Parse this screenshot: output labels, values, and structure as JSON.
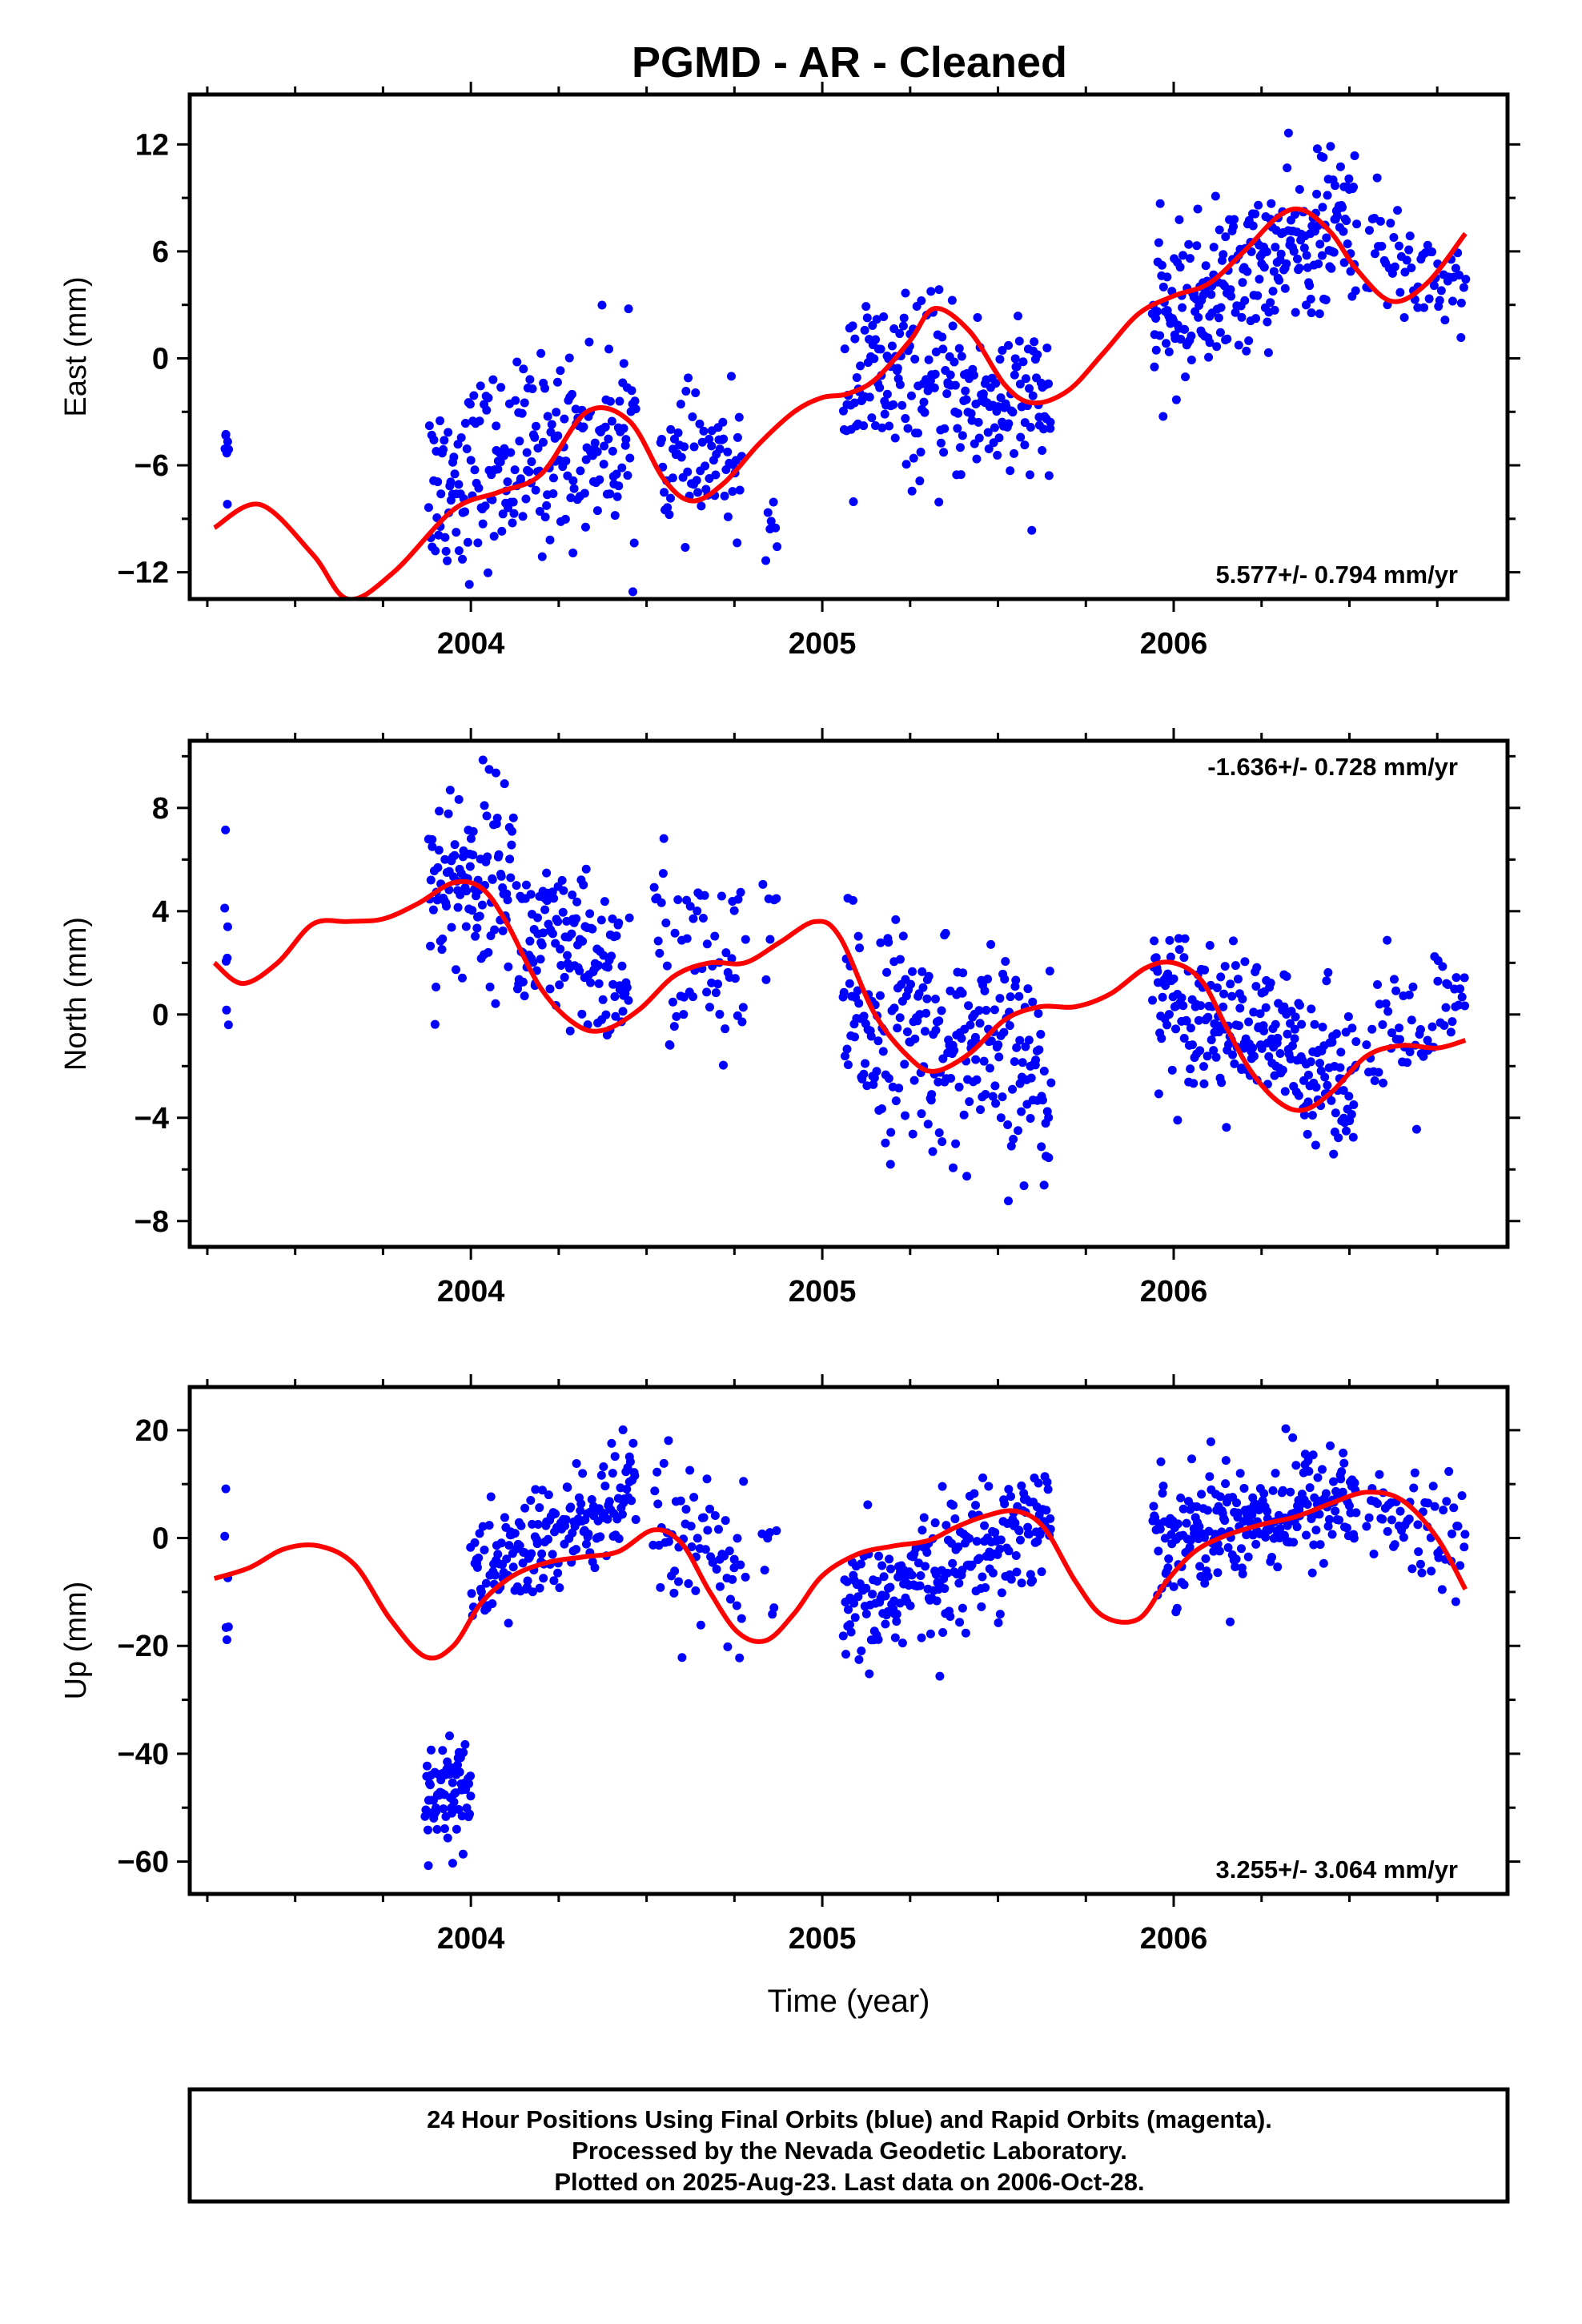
{
  "page": {
    "title": "PGMD  - AR - Cleaned"
  },
  "colors": {
    "final_orbits": "#0000ff",
    "model": "#ff0000",
    "frame": "#000000"
  },
  "chart_data": [
    {
      "type": "scatter",
      "component": "east",
      "ylabel": "East (mm)",
      "xlim": [
        2003.2,
        2006.95
      ],
      "ylim": [
        -13.5,
        14.8
      ],
      "yticks": [
        -12,
        -6,
        0,
        6,
        12
      ],
      "xticks_major": [
        2004,
        2005,
        2006
      ],
      "xtick_labels": [
        "2004",
        "2005",
        "2006"
      ],
      "rate_label": "5.577+/- 0.794 mm/yr",
      "rate_position": "bottom-right",
      "series": [
        {
          "kind": "points",
          "color": "blue",
          "clusters": [
            {
              "t": [
                2003.3,
                2003.31
              ],
              "trend": [
                -3,
                -6
              ],
              "sd": 2.0,
              "n": 7
            },
            {
              "t": [
                2003.88,
                2004.47
              ],
              "trend": [
                -7,
                -4
              ],
              "sd": 2.6,
              "n": 230
            },
            {
              "t": [
                2004.54,
                2004.77
              ],
              "trend": [
                -6,
                -6
              ],
              "sd": 1.8,
              "n": 70
            },
            {
              "t": [
                2004.84,
                2004.87
              ],
              "trend": [
                -10,
                -11
              ],
              "sd": 1.5,
              "n": 7
            },
            {
              "t": [
                2005.06,
                2005.65
              ],
              "trend": [
                -1,
                -3
              ],
              "sd": 2.4,
              "n": 230
            },
            {
              "t": [
                2005.94,
                2006.52
              ],
              "trend": [
                2,
                8
              ],
              "sd": 2.1,
              "n": 260
            },
            {
              "t": [
                2006.55,
                2006.83
              ],
              "trend": [
                6,
                4
              ],
              "sd": 1.7,
              "n": 60
            }
          ]
        },
        {
          "kind": "model",
          "color": "red",
          "t": [
            2003.27,
            2003.4,
            2003.55,
            2003.65,
            2003.78,
            2003.95,
            2004.08,
            2004.2,
            2004.33,
            2004.45,
            2004.55,
            2004.63,
            2004.72,
            2004.82,
            2004.92,
            2005.0,
            2005.07,
            2005.15,
            2005.25,
            2005.32,
            2005.42,
            2005.52,
            2005.6,
            2005.7,
            2005.8,
            2005.9,
            2006.0,
            2006.1,
            2006.2,
            2006.3,
            2006.37,
            2006.45,
            2006.52,
            2006.62,
            2006.72,
            2006.83
          ],
          "y": [
            -9.5,
            -8.2,
            -11.0,
            -13.5,
            -12.0,
            -8.5,
            -7.5,
            -6.5,
            -3.0,
            -3.5,
            -6.8,
            -8.0,
            -7.0,
            -4.8,
            -3.0,
            -2.2,
            -2.0,
            -1.2,
            1.0,
            2.8,
            1.5,
            -1.5,
            -2.5,
            -1.8,
            0.3,
            2.5,
            3.5,
            4.2,
            6.0,
            8.0,
            8.3,
            7.0,
            5.0,
            3.2,
            4.2,
            7.0
          ]
        }
      ]
    },
    {
      "type": "scatter",
      "component": "north",
      "ylabel": "North (mm)",
      "xlim": [
        2003.2,
        2006.95
      ],
      "ylim": [
        -9.0,
        10.6
      ],
      "yticks": [
        -8,
        -4,
        0,
        4,
        8
      ],
      "xticks_major": [
        2004,
        2005,
        2006
      ],
      "xtick_labels": [
        "2004",
        "2005",
        "2006"
      ],
      "rate_label": "-1.636+/- 0.728 mm/yr",
      "rate_position": "top-right",
      "series": [
        {
          "kind": "points",
          "color": "blue",
          "clusters": [
            {
              "t": [
                2003.3,
                2003.31
              ],
              "trend": [
                4,
                2
              ],
              "sd": 2.2,
              "n": 7
            },
            {
              "t": [
                2003.88,
                2004.12
              ],
              "trend": [
                5,
                5.5
              ],
              "sd": 1.9,
              "n": 110
            },
            {
              "t": [
                2004.13,
                2004.45
              ],
              "trend": [
                3,
                1.5
              ],
              "sd": 1.6,
              "n": 130
            },
            {
              "t": [
                2004.52,
                2004.78
              ],
              "trend": [
                3,
                1
              ],
              "sd": 1.9,
              "n": 60
            },
            {
              "t": [
                2004.83,
                2004.87
              ],
              "trend": [
                3.5,
                3
              ],
              "sd": 1.4,
              "n": 6
            },
            {
              "t": [
                2005.06,
                2005.65
              ],
              "trend": [
                0,
                -2.5
              ],
              "sd": 2.0,
              "n": 240
            },
            {
              "t": [
                2005.94,
                2006.52
              ],
              "trend": [
                1,
                -2.5
              ],
              "sd": 1.4,
              "n": 250
            },
            {
              "t": [
                2006.55,
                2006.83
              ],
              "trend": [
                -1.5,
                0
              ],
              "sd": 1.5,
              "n": 60
            }
          ]
        },
        {
          "kind": "model",
          "color": "red",
          "t": [
            2003.27,
            2003.35,
            2003.45,
            2003.55,
            2003.65,
            2003.75,
            2003.85,
            2003.95,
            2004.03,
            2004.1,
            2004.2,
            2004.3,
            2004.38,
            2004.48,
            2004.58,
            2004.68,
            2004.78,
            2004.88,
            2004.98,
            2005.05,
            2005.15,
            2005.25,
            2005.32,
            2005.42,
            2005.52,
            2005.62,
            2005.72,
            2005.82,
            2005.92,
            2006.0,
            2006.08,
            2006.15,
            2006.22,
            2006.3,
            2006.37,
            2006.45,
            2006.55,
            2006.65,
            2006.75,
            2006.83
          ],
          "y": [
            2.0,
            1.2,
            2.0,
            3.5,
            3.6,
            3.7,
            4.3,
            5.1,
            4.9,
            3.6,
            1.0,
            -0.4,
            -0.6,
            0.2,
            1.5,
            2.0,
            2.0,
            2.8,
            3.6,
            3.0,
            0.0,
            -1.7,
            -2.2,
            -1.5,
            -0.2,
            0.3,
            0.3,
            0.8,
            1.8,
            2.0,
            1.3,
            -0.5,
            -2.2,
            -3.4,
            -3.7,
            -3.0,
            -1.6,
            -1.2,
            -1.3,
            -1.0
          ]
        }
      ]
    },
    {
      "type": "scatter",
      "component": "up",
      "ylabel": "Up (mm)",
      "xlim": [
        2003.2,
        2006.95
      ],
      "ylim": [
        -66,
        28
      ],
      "yticks": [
        -60,
        -40,
        -20,
        0,
        20
      ],
      "xticks_major": [
        2004,
        2005,
        2006
      ],
      "xtick_labels": [
        "2004",
        "2005",
        "2006"
      ],
      "xlabel": "Time (year)",
      "rate_label": "3.255+/- 3.064 mm/yr",
      "rate_position": "bottom-right",
      "series": [
        {
          "kind": "points",
          "color": "blue",
          "clusters": [
            {
              "t": [
                2003.3,
                2003.31
              ],
              "trend": [
                -4,
                -15
              ],
              "sd": 7.0,
              "n": 6
            },
            {
              "t": [
                2003.87,
                2004.0
              ],
              "trend": [
                -50,
                -45
              ],
              "sd": 5.5,
              "n": 75
            },
            {
              "t": [
                2004.0,
                2004.47
              ],
              "trend": [
                -8,
                8
              ],
              "sd": 5.5,
              "n": 190
            },
            {
              "t": [
                2004.52,
                2004.78
              ],
              "trend": [
                2,
                -8
              ],
              "sd": 7.0,
              "n": 65
            },
            {
              "t": [
                2004.83,
                2004.87
              ],
              "trend": [
                -8,
                -10
              ],
              "sd": 6.0,
              "n": 7
            },
            {
              "t": [
                2005.06,
                2005.65
              ],
              "trend": [
                -15,
                5
              ],
              "sd": 6.0,
              "n": 240
            },
            {
              "t": [
                2005.94,
                2006.52
              ],
              "trend": [
                0,
                8
              ],
              "sd": 5.5,
              "n": 250
            },
            {
              "t": [
                2006.55,
                2006.83
              ],
              "trend": [
                5,
                -2
              ],
              "sd": 5.0,
              "n": 60
            }
          ]
        },
        {
          "kind": "model",
          "color": "red",
          "t": [
            2003.27,
            2003.37,
            2003.47,
            2003.57,
            2003.67,
            2003.77,
            2003.87,
            2003.95,
            2004.03,
            2004.12,
            2004.22,
            2004.32,
            2004.42,
            2004.52,
            2004.6,
            2004.68,
            2004.76,
            2004.84,
            2004.92,
            2005.0,
            2005.1,
            2005.2,
            2005.3,
            2005.38,
            2005.46,
            2005.55,
            2005.63,
            2005.72,
            2005.8,
            2005.9,
            2005.98,
            2006.06,
            2006.15,
            2006.25,
            2006.35,
            2006.45,
            2006.55,
            2006.65,
            2006.75,
            2006.83
          ],
          "y": [
            -7.5,
            -5.5,
            -2.0,
            -1.5,
            -5.0,
            -15.0,
            -22.0,
            -20.0,
            -12.0,
            -7.0,
            -4.5,
            -3.5,
            -2.5,
            1.5,
            -1.0,
            -10.0,
            -17.5,
            -19.0,
            -14.0,
            -7.0,
            -3.0,
            -1.5,
            -0.5,
            2.0,
            4.0,
            5.0,
            2.0,
            -8.0,
            -14.5,
            -15.0,
            -8.0,
            -2.5,
            0.5,
            2.5,
            4.0,
            6.5,
            8.5,
            7.0,
            0.0,
            -9.5
          ]
        }
      ]
    }
  ],
  "footer": {
    "line1": "24 Hour Positions Using Final Orbits (blue) and Rapid Orbits (magenta).",
    "line2": "Processed by the Nevada Geodetic Laboratory.",
    "line3": "Plotted on 2025-Aug-23. Last data on 2006-Oct-28."
  }
}
